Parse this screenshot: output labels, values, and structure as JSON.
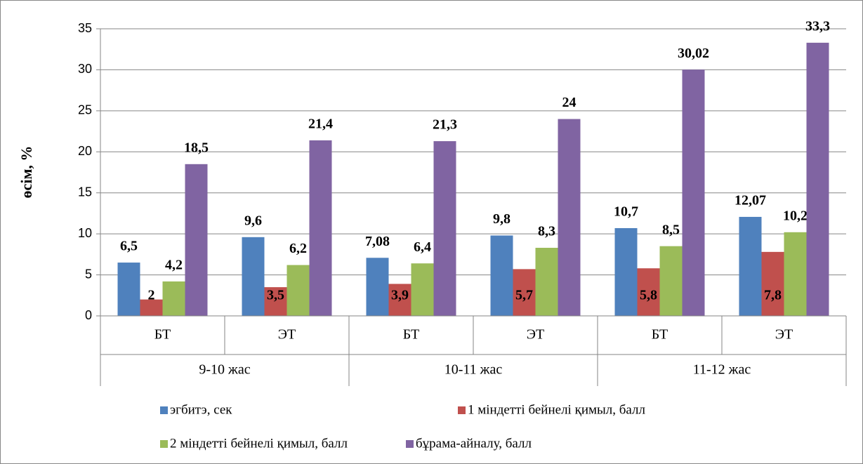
{
  "chart_data": {
    "type": "bar",
    "ylabel": "өсім, %",
    "categories": [
      "БТ",
      "ЭТ",
      "БТ",
      "ЭТ",
      "БТ",
      "ЭТ"
    ],
    "groups": [
      "9-10 жас",
      "10-11 жас",
      "11-12 жас"
    ],
    "series": [
      {
        "name": "эгбитэ, сек",
        "color": "#4f81bd",
        "values": [
          6.5,
          9.6,
          7.08,
          9.8,
          10.7,
          12.07
        ],
        "value_labels": [
          "6,5",
          "9,6",
          "7,08",
          "9,8",
          "10,7",
          "12,07"
        ]
      },
      {
        "name": "1 міндетті бейнелі қимыл, балл",
        "color": "#c0504d",
        "values": [
          2,
          3.5,
          3.9,
          5.7,
          5.8,
          7.8
        ],
        "value_labels": [
          "2",
          "3,5",
          "3,9",
          "5,7",
          "5,8",
          "7,8"
        ]
      },
      {
        "name": "2 міндетті бейнелі қимыл, балл",
        "color": "#9bbb59",
        "values": [
          4.2,
          6.2,
          6.4,
          8.3,
          8.5,
          10.2
        ],
        "value_labels": [
          "4,2",
          "6,2",
          "6,4",
          "8,3",
          "8,5",
          "10,2"
        ]
      },
      {
        "name": "бұрама-айналу, балл",
        "color": "#8064a2",
        "values": [
          18.5,
          21.4,
          21.3,
          24,
          30.02,
          33.3
        ],
        "value_labels": [
          "18,5",
          "21,4",
          "21,3",
          "24",
          "30,02",
          "33,3"
        ]
      }
    ],
    "ylim": [
      0,
      35
    ],
    "yticks": [
      0,
      5,
      10,
      15,
      20,
      25,
      30,
      35
    ],
    "grid": true
  }
}
